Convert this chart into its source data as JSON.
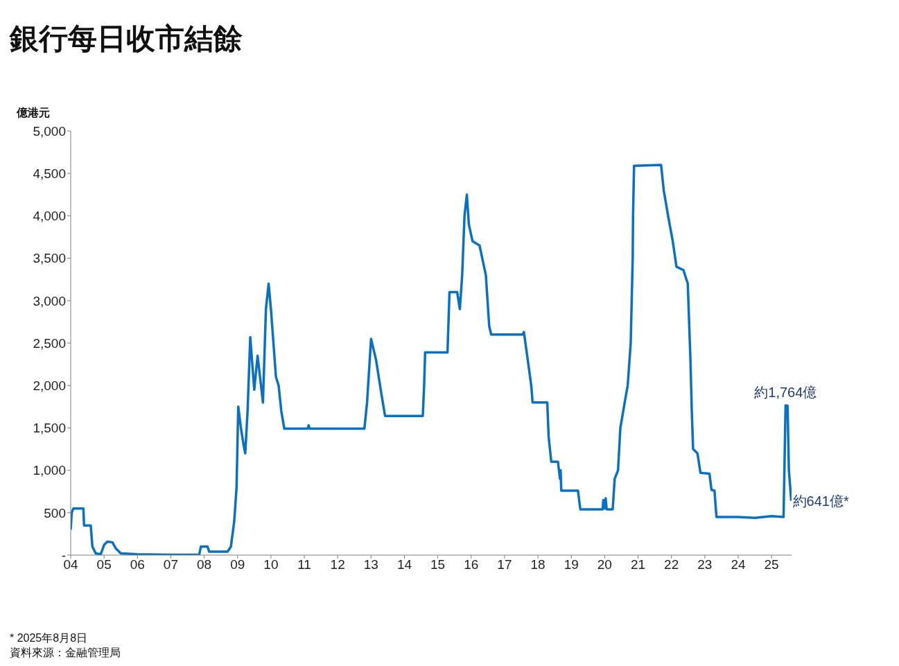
{
  "chart_data": {
    "type": "line",
    "title": "銀行每日收市結餘",
    "ylabel": "億港元",
    "color": "#0a70c2",
    "x": [
      2004.0,
      2004.03,
      2004.08,
      2004.38,
      2004.4,
      2004.6,
      2004.65,
      2004.75,
      2004.9,
      2005.0,
      2005.1,
      2005.25,
      2005.35,
      2005.5,
      2006.0,
      2007.0,
      2007.85,
      2007.9,
      2008.1,
      2008.15,
      2008.7,
      2008.8,
      2008.9,
      2008.97,
      2009.02,
      2009.1,
      2009.18,
      2009.23,
      2009.3,
      2009.38,
      2009.5,
      2009.6,
      2009.76,
      2009.85,
      2009.93,
      2010.0,
      2010.15,
      2010.23,
      2010.31,
      2010.4,
      2011.1,
      2011.13,
      2011.16,
      2012.8,
      2012.88,
      2013.0,
      2013.15,
      2013.31,
      2013.42,
      2014.55,
      2014.59,
      2014.62,
      2015.29,
      2015.35,
      2015.58,
      2015.66,
      2015.73,
      2015.8,
      2015.87,
      2015.93,
      2016.04,
      2016.25,
      2016.44,
      2016.54,
      2016.6,
      2016.7,
      2017.54,
      2017.58,
      2017.8,
      2017.84,
      2018.28,
      2018.32,
      2018.4,
      2018.6,
      2018.66,
      2018.68,
      2018.7,
      2019.2,
      2019.27,
      2019.94,
      2019.96,
      2020.0,
      2020.03,
      2020.06,
      2020.24,
      2020.3,
      2020.4,
      2020.47,
      2020.6,
      2020.69,
      2020.78,
      2020.84,
      2020.85,
      2020.88,
      2021.69,
      2021.77,
      2021.9,
      2022.04,
      2022.15,
      2022.36,
      2022.49,
      2022.57,
      2022.61,
      2022.65,
      2022.78,
      2022.87,
      2023.14,
      2023.2,
      2023.29,
      2023.35,
      2024.0,
      2024.5,
      2025.0,
      2025.36,
      2025.42,
      2025.48,
      2025.52,
      2025.59
    ],
    "values": [
      300,
      500,
      550,
      550,
      350,
      350,
      100,
      20,
      10,
      120,
      160,
      150,
      80,
      20,
      10,
      5,
      5,
      100,
      100,
      40,
      40,
      100,
      400,
      800,
      1750,
      1500,
      1300,
      1200,
      1700,
      2570,
      1950,
      2350,
      1800,
      2900,
      3200,
      2900,
      2100,
      2000,
      1700,
      1490,
      1490,
      1530,
      1490,
      1490,
      1800,
      2550,
      2300,
      1900,
      1640,
      1640,
      2000,
      2390,
      2390,
      3100,
      3100,
      2900,
      3300,
      4000,
      4250,
      3900,
      3700,
      3650,
      3300,
      2700,
      2600,
      2600,
      2600,
      2630,
      2000,
      1800,
      1800,
      1400,
      1100,
      1100,
      900,
      1000,
      760,
      760,
      540,
      540,
      650,
      550,
      670,
      540,
      540,
      900,
      1000,
      1500,
      1800,
      2000,
      2500,
      3500,
      4000,
      4590,
      4600,
      4300,
      4000,
      3700,
      3400,
      3360,
      3200,
      2300,
      1700,
      1250,
      1200,
      970,
      960,
      770,
      760,
      450,
      450,
      440,
      460,
      450,
      1764,
      1760,
      1000,
      641
    ],
    "xlim": [
      2004,
      2025.6
    ],
    "xticks": [
      {
        "value": 2004,
        "label": "04"
      },
      {
        "value": 2005,
        "label": "05"
      },
      {
        "value": 2006,
        "label": "06"
      },
      {
        "value": 2007,
        "label": "07"
      },
      {
        "value": 2008,
        "label": "08"
      },
      {
        "value": 2009,
        "label": "09"
      },
      {
        "value": 2010,
        "label": "10"
      },
      {
        "value": 2011,
        "label": "11"
      },
      {
        "value": 2012,
        "label": "12"
      },
      {
        "value": 2013,
        "label": "13"
      },
      {
        "value": 2014,
        "label": "14"
      },
      {
        "value": 2015,
        "label": "15"
      },
      {
        "value": 2016,
        "label": "16"
      },
      {
        "value": 2017,
        "label": "17"
      },
      {
        "value": 2018,
        "label": "18"
      },
      {
        "value": 2019,
        "label": "19"
      },
      {
        "value": 2020,
        "label": "20"
      },
      {
        "value": 2021,
        "label": "21"
      },
      {
        "value": 2022,
        "label": "22"
      },
      {
        "value": 2023,
        "label": "23"
      },
      {
        "value": 2024,
        "label": "24"
      },
      {
        "value": 2025,
        "label": "25"
      }
    ],
    "ylim": [
      0,
      5000
    ],
    "yticks": [
      {
        "value": 0,
        "label": "-"
      },
      500,
      {
        "value": 1000,
        "label": "1,000"
      },
      {
        "value": 1500,
        "label": "1,500"
      },
      {
        "value": 2000,
        "label": "2,000"
      },
      {
        "value": 2500,
        "label": "2,500"
      },
      {
        "value": 3000,
        "label": "3,000"
      },
      {
        "value": 3500,
        "label": "3,500"
      },
      {
        "value": 4000,
        "label": "4,000"
      },
      {
        "value": 4500,
        "label": "4,500"
      },
      {
        "value": 5000,
        "label": "5,000"
      }
    ],
    "annotations": [
      {
        "text": "約1,764億",
        "x": 2025.42,
        "y": 1764
      },
      {
        "text": "約641億*",
        "x": 2025.59,
        "y": 641
      },
      "* 2025年8月8日",
      "資料來源：金融管理局"
    ]
  }
}
